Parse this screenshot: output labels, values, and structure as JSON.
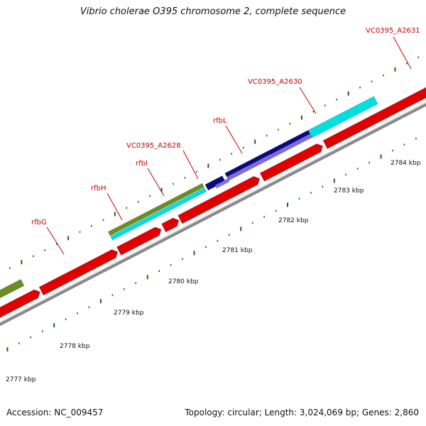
{
  "title": "Vibrio cholerae O395 chromosome 2, complete sequence",
  "footer": {
    "accession": "Accession: NC_009457",
    "summary": "Topology: circular; Length: 3,024,069 bp; Genes: 2,860"
  },
  "colors": {
    "label": "#cc0000",
    "tick": "#1a6b1a",
    "backbone": "#888888",
    "cds_red": "#e00000",
    "cyan": "#00e0e0",
    "olive": "#6b8e23",
    "navy": "#0a0a80",
    "purple": "#7b68ee"
  },
  "scale_labels": [
    "2777 kbp",
    "2778 kbp",
    "2779 kbp",
    "2780 kbp",
    "2781 kbp",
    "2782 kbp",
    "2783 kbp",
    "2784 kbp"
  ],
  "gene_labels": [
    "rfbG",
    "rfbH",
    "rfbI",
    "VC0395_A2628",
    "rfbL",
    "VC0395_A2630",
    "VC0395_A2631"
  ]
}
